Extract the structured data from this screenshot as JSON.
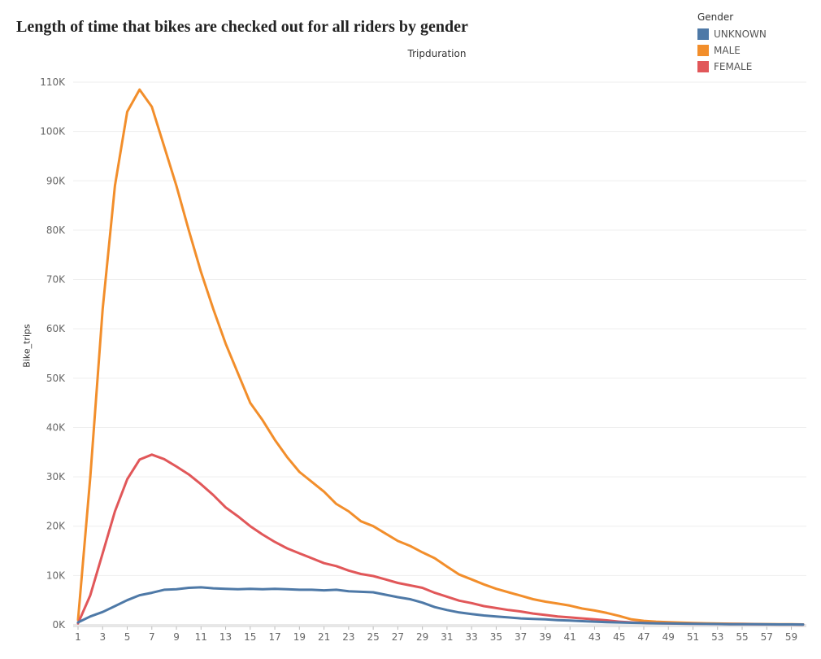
{
  "title": "Length of time that bikes are checked out for all riders by gender",
  "chart_data": {
    "type": "line",
    "title": "Length of time that bikes are checked out for all riders by gender",
    "xlabel": "Tripduration",
    "ylabel": "Bike_trips",
    "x": [
      1,
      2,
      3,
      4,
      5,
      6,
      7,
      8,
      9,
      10,
      11,
      12,
      13,
      14,
      15,
      16,
      17,
      18,
      19,
      20,
      21,
      22,
      23,
      24,
      25,
      26,
      27,
      28,
      29,
      30,
      31,
      32,
      33,
      34,
      35,
      36,
      37,
      38,
      39,
      40,
      41,
      42,
      43,
      44,
      45,
      46,
      47,
      48,
      49,
      50,
      51,
      52,
      53,
      54,
      55,
      56,
      57,
      58,
      59,
      60
    ],
    "xticks": [
      1,
      3,
      5,
      7,
      9,
      11,
      13,
      15,
      17,
      19,
      21,
      23,
      25,
      27,
      29,
      31,
      33,
      35,
      37,
      39,
      41,
      43,
      45,
      47,
      49,
      51,
      53,
      55,
      57,
      59
    ],
    "ylim": [
      0,
      110000
    ],
    "yticks": [
      0,
      10000,
      20000,
      30000,
      40000,
      50000,
      60000,
      70000,
      80000,
      90000,
      100000,
      110000
    ],
    "ytick_labels": [
      "0K",
      "10K",
      "20K",
      "30K",
      "40K",
      "50K",
      "60K",
      "70K",
      "80K",
      "90K",
      "100K",
      "110K"
    ],
    "grid": true,
    "legend": {
      "title": "Gender",
      "position": "top-right"
    },
    "series": [
      {
        "name": "UNKNOWN",
        "color": "#4e79a7",
        "values": [
          500,
          1700,
          2600,
          3800,
          5000,
          6000,
          6500,
          7100,
          7200,
          7500,
          7600,
          7400,
          7300,
          7200,
          7300,
          7200,
          7300,
          7200,
          7100,
          7100,
          7000,
          7100,
          6800,
          6700,
          6600,
          6100,
          5600,
          5200,
          4500,
          3600,
          3000,
          2500,
          2200,
          1900,
          1700,
          1500,
          1300,
          1200,
          1100,
          950,
          850,
          750,
          650,
          550,
          480,
          410,
          360,
          320,
          280,
          240,
          210,
          180,
          160,
          140,
          120,
          110,
          100,
          90,
          80,
          70
        ]
      },
      {
        "name": "MALE",
        "color": "#f28e2b",
        "values": [
          1000,
          30000,
          64000,
          89000,
          104000,
          108500,
          105000,
          97000,
          89000,
          80000,
          71500,
          64000,
          57000,
          51000,
          45000,
          41500,
          37500,
          34000,
          31000,
          29000,
          27000,
          24500,
          23000,
          21000,
          20000,
          18500,
          17000,
          16000,
          14700,
          13500,
          11800,
          10200,
          9200,
          8200,
          7300,
          6600,
          5900,
          5200,
          4700,
          4300,
          3900,
          3300,
          2900,
          2400,
          1800,
          1100,
          800,
          650,
          550,
          450,
          380,
          320,
          270,
          230,
          200,
          170,
          150,
          130,
          110,
          90
        ]
      },
      {
        "name": "FEMALE",
        "color": "#e15759",
        "values": [
          300,
          6000,
          14500,
          23000,
          29500,
          33500,
          34500,
          33600,
          32100,
          30500,
          28500,
          26300,
          23800,
          22000,
          20000,
          18300,
          16800,
          15500,
          14500,
          13500,
          12500,
          11900,
          11000,
          10300,
          9900,
          9200,
          8500,
          8000,
          7500,
          6500,
          5700,
          4900,
          4400,
          3800,
          3400,
          3000,
          2700,
          2300,
          2000,
          1700,
          1500,
          1300,
          1100,
          900,
          650,
          500,
          400,
          330,
          280,
          230,
          200,
          170,
          150,
          130,
          110,
          95,
          80,
          70,
          60,
          50
        ]
      }
    ]
  }
}
